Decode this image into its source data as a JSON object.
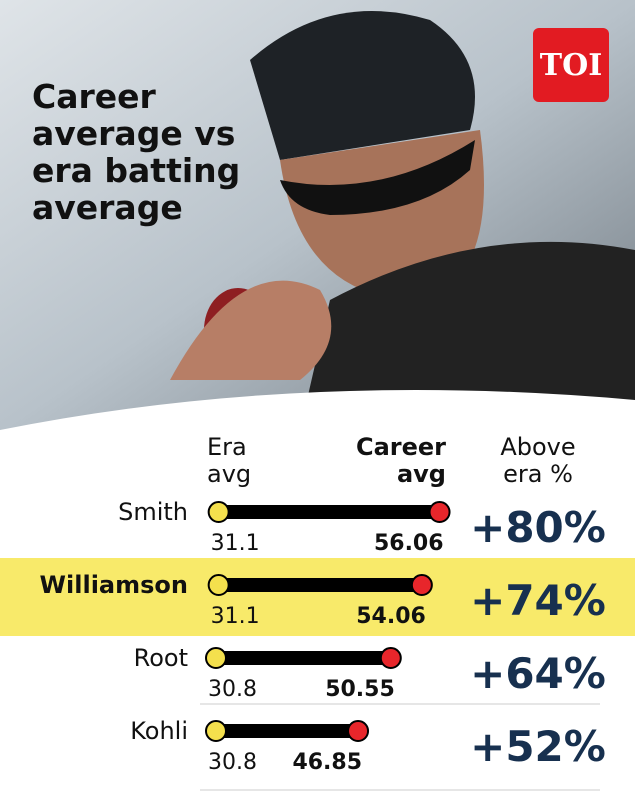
{
  "chart_data": {
    "type": "dumbbell",
    "title": "Career average vs era batting average",
    "logo": "TOI",
    "categories": [
      "Smith",
      "Williamson",
      "Root",
      "Kohli"
    ],
    "highlight": "Williamson",
    "headers": [
      "Era avg",
      "Career avg",
      "Above era %"
    ],
    "series": [
      {
        "name": "Era avg",
        "color": "#f4e04d",
        "values": [
          31.1,
          31.1,
          30.8,
          30.8
        ]
      },
      {
        "name": "Career avg",
        "color": "#e8262b",
        "values": [
          56.06,
          54.06,
          50.55,
          46.85
        ]
      }
    ],
    "above_era": {
      "values": [
        80,
        74,
        64,
        52
      ],
      "value_labels": [
        "+80%",
        "+74%",
        "+64%",
        "+52%"
      ]
    }
  }
}
